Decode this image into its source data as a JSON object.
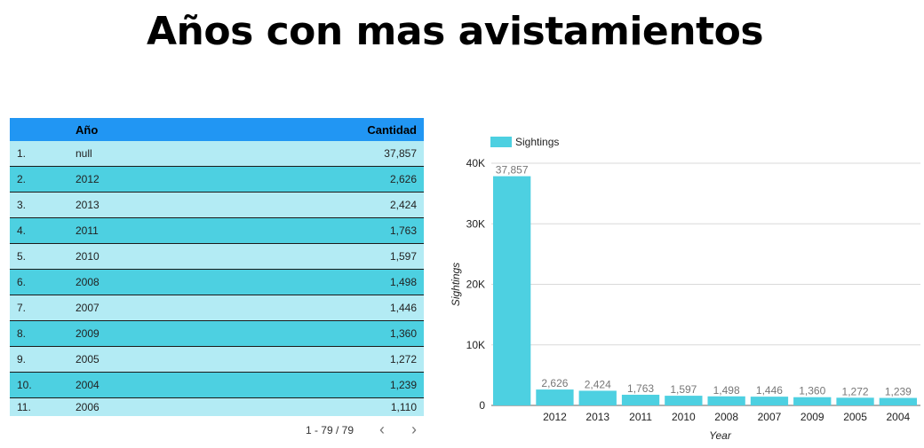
{
  "page": {
    "title": "Años con mas avistamientos"
  },
  "table": {
    "headers": {
      "year": "Año",
      "count": "Cantidad"
    },
    "rows": [
      {
        "index": "1.",
        "year": "null",
        "count": "37,857"
      },
      {
        "index": "2.",
        "year": "2012",
        "count": "2,626"
      },
      {
        "index": "3.",
        "year": "2013",
        "count": "2,424"
      },
      {
        "index": "4.",
        "year": "2011",
        "count": "1,763"
      },
      {
        "index": "5.",
        "year": "2010",
        "count": "1,597"
      },
      {
        "index": "6.",
        "year": "2008",
        "count": "1,498"
      },
      {
        "index": "7.",
        "year": "2007",
        "count": "1,446"
      },
      {
        "index": "8.",
        "year": "2009",
        "count": "1,360"
      },
      {
        "index": "9.",
        "year": "2005",
        "count": "1,272"
      },
      {
        "index": "10.",
        "year": "2004",
        "count": "1,239"
      },
      {
        "index": "11.",
        "year": "2006",
        "count": "1,110"
      }
    ],
    "pagination": {
      "text": "1 - 79 / 79",
      "prev_icon": "chevron-left-icon",
      "next_icon": "chevron-right-icon"
    },
    "colors": {
      "header": "#2196f3",
      "row_light": "#b3ebf4",
      "row_dark": "#4dd0e1"
    }
  },
  "chart_data": {
    "type": "bar",
    "categories": [
      "",
      "2012",
      "2013",
      "2011",
      "2010",
      "2008",
      "2007",
      "2009",
      "2005",
      "2004"
    ],
    "series": [
      {
        "name": "Sightings",
        "color": "#4dd0e1",
        "values": [
          37857,
          2626,
          2424,
          1763,
          1597,
          1498,
          1446,
          1360,
          1272,
          1239
        ]
      }
    ],
    "data_labels": [
      "37,857",
      "2,626",
      "2,424",
      "1,763",
      "1,597",
      "1,498",
      "1,446",
      "1,360",
      "1,272",
      "1,239"
    ],
    "xlabel": "Year",
    "ylabel": "Sightings",
    "ylim": [
      0,
      40000
    ],
    "yticks": [
      0,
      10000,
      20000,
      30000,
      40000
    ],
    "ytick_labels": [
      "0",
      "10K",
      "20K",
      "30K",
      "40K"
    ],
    "grid": true,
    "legend_position": "top-left"
  }
}
